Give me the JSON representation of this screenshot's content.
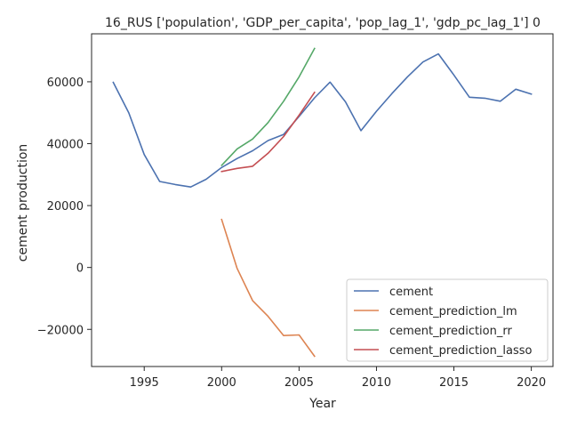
{
  "chart_data": {
    "type": "line",
    "title": "16_RUS ['population', 'GDP_per_capita', 'pop_lag_1', 'gdp_pc_lag_1'] 0",
    "xlabel": "Year",
    "ylabel": "cement production",
    "xlim": [
      1991.6,
      2021.4
    ],
    "ylim": [
      -32000,
      75500
    ],
    "x_ticks": [
      1995,
      2000,
      2005,
      2010,
      2015,
      2020
    ],
    "y_ticks": [
      -20000,
      0,
      20000,
      40000,
      60000
    ],
    "y_tick_labels": [
      "−20000",
      "0",
      "20000",
      "40000",
      "60000"
    ],
    "grid": false,
    "legend_position": "lower-right",
    "series": [
      {
        "name": "cement",
        "color": "#4c72b0",
        "x": [
          1993,
          1994,
          1995,
          1996,
          1997,
          1998,
          1999,
          2000,
          2001,
          2002,
          2003,
          2004,
          2005,
          2006,
          2007,
          2008,
          2009,
          2010,
          2011,
          2012,
          2013,
          2014,
          2015,
          2016,
          2017,
          2018,
          2019,
          2020
        ],
        "values": [
          59800,
          50000,
          36500,
          27800,
          26800,
          26000,
          28500,
          32300,
          35200,
          37700,
          41000,
          43000,
          48800,
          54800,
          59900,
          53500,
          44200,
          50500,
          56200,
          61600,
          66400,
          69000,
          62200,
          55000,
          54700,
          53700,
          57600,
          56000
        ]
      },
      {
        "name": "cement_prediction_lm",
        "color": "#dd8452",
        "x": [
          2000,
          2001,
          2002,
          2003,
          2004,
          2005,
          2006
        ],
        "values": [
          15500,
          -300,
          -10700,
          -15800,
          -22000,
          -21800,
          -28700
        ]
      },
      {
        "name": "cement_prediction_rr",
        "color": "#55a868",
        "x": [
          2000,
          2001,
          2002,
          2003,
          2004,
          2005,
          2006
        ],
        "values": [
          33000,
          38300,
          41500,
          46800,
          53700,
          61600,
          70800
        ]
      },
      {
        "name": "cement_prediction_lasso",
        "color": "#c44e52",
        "x": [
          2000,
          2001,
          2002,
          2003,
          2004,
          2005,
          2006
        ],
        "values": [
          31000,
          32000,
          32700,
          36900,
          42300,
          49200,
          56600
        ]
      }
    ]
  }
}
